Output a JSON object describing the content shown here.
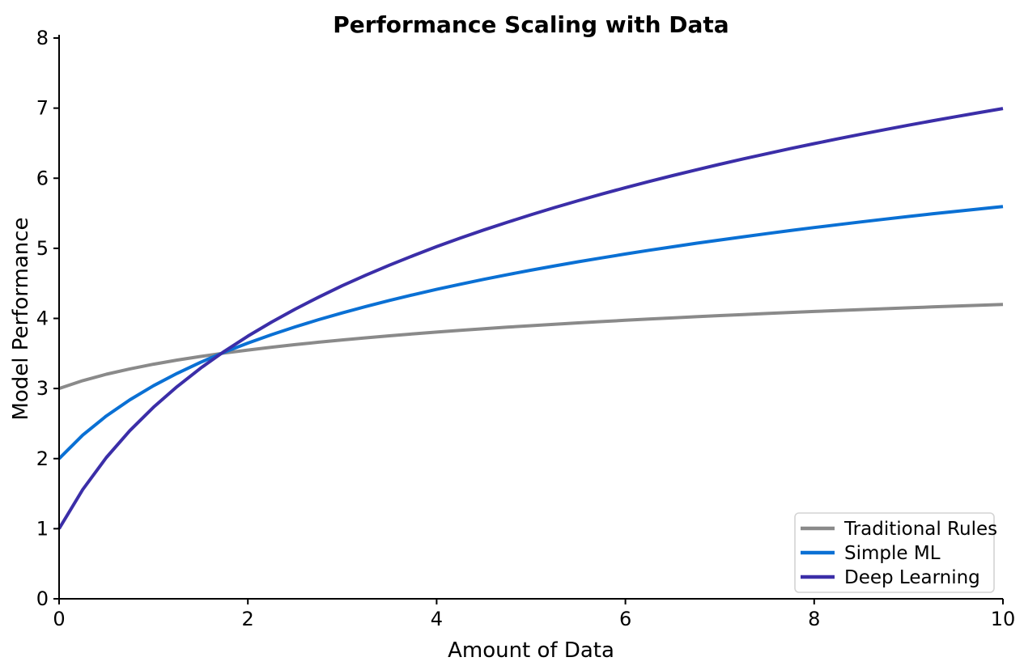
{
  "figure": {
    "title": "Performance Scaling with Data",
    "xlabel": "Amount of Data",
    "ylabel": "Model Performance"
  },
  "chart_data": {
    "type": "line",
    "title": "Performance Scaling with Data",
    "xlabel": "Amount of Data",
    "ylabel": "Model Performance",
    "xlim": [
      0,
      10
    ],
    "ylim": [
      0,
      8
    ],
    "xticks": [
      0,
      2,
      4,
      6,
      8,
      10
    ],
    "yticks": [
      0,
      1,
      2,
      3,
      4,
      5,
      6,
      7,
      8
    ],
    "grid": false,
    "legend_position": "lower right",
    "axis_color": "#000000",
    "x": [
      0,
      0.25,
      0.5,
      0.75,
      1,
      1.25,
      1.5,
      1.75,
      2,
      2.25,
      2.5,
      2.75,
      3,
      3.25,
      3.5,
      3.75,
      4,
      4.25,
      4.5,
      4.75,
      5,
      5.25,
      5.5,
      5.75,
      6,
      6.25,
      6.5,
      6.75,
      7,
      7.25,
      7.5,
      7.75,
      8,
      8.25,
      8.5,
      8.75,
      9,
      9.25,
      9.5,
      9.75,
      10
    ],
    "series": [
      {
        "name": "Traditional Rules",
        "color": "#8a8a8a",
        "linewidth": 4,
        "values": [
          3.0,
          3.112,
          3.203,
          3.28,
          3.347,
          3.405,
          3.458,
          3.506,
          3.549,
          3.589,
          3.626,
          3.661,
          3.693,
          3.723,
          3.752,
          3.779,
          3.805,
          3.829,
          3.852,
          3.875,
          3.896,
          3.916,
          3.936,
          3.955,
          3.973,
          3.991,
          4.007,
          4.024,
          4.04,
          4.055,
          4.07,
          4.085,
          4.099,
          4.112,
          4.126,
          4.139,
          4.151,
          4.164,
          4.176,
          4.187,
          4.199
        ]
      },
      {
        "name": "Simple ML",
        "color": "#0a70d4",
        "linewidth": 4,
        "values": [
          2.0,
          2.335,
          2.608,
          2.839,
          3.04,
          3.216,
          3.374,
          3.517,
          3.648,
          3.768,
          3.879,
          3.983,
          4.079,
          4.17,
          4.256,
          4.337,
          4.414,
          4.487,
          4.557,
          4.624,
          4.688,
          4.749,
          4.808,
          4.864,
          4.919,
          4.972,
          5.022,
          5.072,
          5.119,
          5.165,
          5.21,
          5.254,
          5.296,
          5.337,
          5.377,
          5.416,
          5.454,
          5.491,
          5.527,
          5.562,
          5.597
        ]
      },
      {
        "name": "Deep Learning",
        "color": "#3b2ea8",
        "linewidth": 4,
        "values": [
          1.0,
          1.558,
          2.014,
          2.399,
          2.733,
          3.027,
          3.291,
          3.529,
          3.747,
          3.947,
          4.132,
          4.304,
          4.466,
          4.617,
          4.76,
          4.895,
          5.024,
          5.146,
          5.262,
          5.373,
          5.479,
          5.581,
          5.68,
          5.774,
          5.865,
          5.953,
          6.037,
          6.119,
          6.199,
          6.276,
          6.35,
          6.423,
          6.493,
          6.562,
          6.628,
          6.693,
          6.757,
          6.818,
          6.878,
          6.937,
          6.995
        ]
      }
    ],
    "legend": {
      "border_color": "#d4d4d4",
      "background": "#ffffff"
    }
  }
}
